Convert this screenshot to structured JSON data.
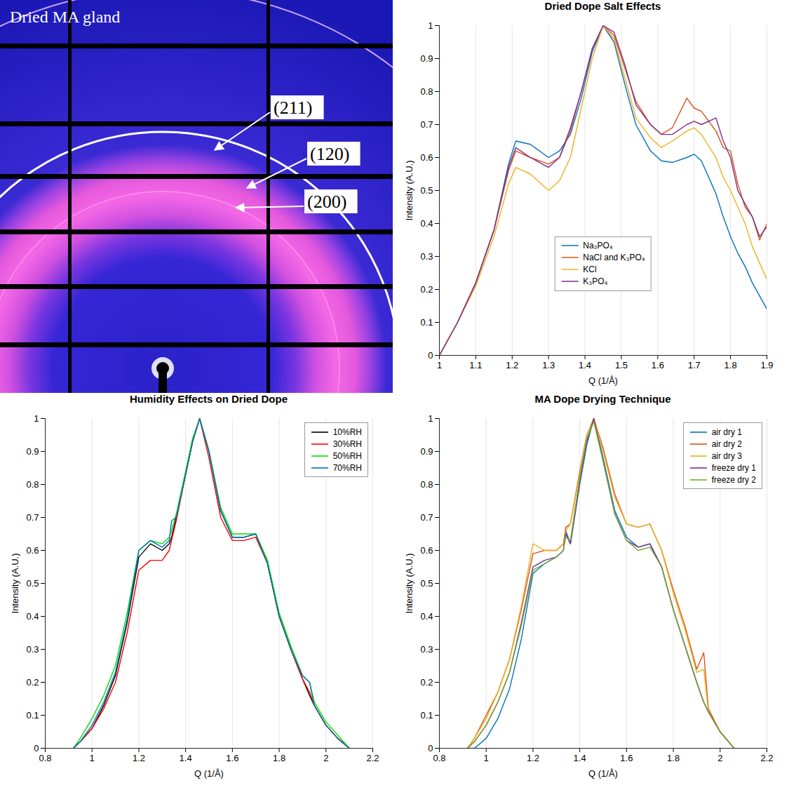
{
  "chart_data": [
    {
      "type": "image",
      "title": "Dried MA gland",
      "annotations": [
        "(211)",
        "(120)",
        "(200)"
      ]
    },
    {
      "type": "line",
      "title": "Dried Dope Salt Effects",
      "xlabel": "Q (1/Å)",
      "ylabel": "Intensity (A.U.)",
      "x": [
        1,
        1.05,
        1.1,
        1.15,
        1.19,
        1.21,
        1.25,
        1.3,
        1.33,
        1.36,
        1.39,
        1.42,
        1.45,
        1.48,
        1.51,
        1.54,
        1.58,
        1.61,
        1.64,
        1.68,
        1.7,
        1.72,
        1.76,
        1.78,
        1.8,
        1.82,
        1.84,
        1.86,
        1.88,
        1.9
      ],
      "xlim": [
        1,
        1.9
      ],
      "xticks": [
        1,
        1.1,
        1.2,
        1.3,
        1.4,
        1.5,
        1.6,
        1.7,
        1.8,
        1.9
      ],
      "ylim": [
        0,
        1
      ],
      "yticks": [
        0,
        0.1,
        0.2,
        0.3,
        0.4,
        0.5,
        0.6,
        0.7,
        0.8,
        0.9,
        1
      ],
      "grid": "x",
      "legend": "bottom",
      "series": [
        {
          "name": "Na₃PO₄",
          "color": "#0072bd",
          "values": [
            0,
            0.1,
            0.22,
            0.38,
            0.58,
            0.65,
            0.64,
            0.6,
            0.62,
            0.67,
            0.78,
            0.92,
            1.0,
            0.95,
            0.82,
            0.7,
            0.62,
            0.59,
            0.585,
            0.6,
            0.61,
            0.59,
            0.49,
            0.42,
            0.36,
            0.31,
            0.27,
            0.22,
            0.18,
            0.14
          ]
        },
        {
          "name": "NaCl and K₃PO₄",
          "color": "#d95319",
          "values": [
            0,
            0.1,
            0.22,
            0.38,
            0.56,
            0.62,
            0.6,
            0.58,
            0.6,
            0.68,
            0.8,
            0.93,
            1.0,
            0.97,
            0.87,
            0.77,
            0.7,
            0.67,
            0.69,
            0.78,
            0.75,
            0.74,
            0.68,
            0.63,
            0.62,
            0.52,
            0.45,
            0.42,
            0.35,
            0.4
          ]
        },
        {
          "name": "KCl",
          "color": "#edb120",
          "values": [
            0,
            0.1,
            0.21,
            0.36,
            0.52,
            0.57,
            0.55,
            0.5,
            0.53,
            0.6,
            0.75,
            0.9,
            1.0,
            0.96,
            0.84,
            0.72,
            0.66,
            0.63,
            0.65,
            0.68,
            0.69,
            0.67,
            0.6,
            0.54,
            0.5,
            0.45,
            0.4,
            0.33,
            0.28,
            0.23
          ]
        },
        {
          "name": "K₃PO₄",
          "color": "#7e2f8e",
          "values": [
            0,
            0.1,
            0.22,
            0.38,
            0.57,
            0.63,
            0.6,
            0.57,
            0.6,
            0.69,
            0.8,
            0.93,
            1.0,
            0.98,
            0.88,
            0.76,
            0.7,
            0.67,
            0.67,
            0.7,
            0.71,
            0.7,
            0.72,
            0.65,
            0.6,
            0.5,
            0.46,
            0.42,
            0.36,
            0.39
          ]
        }
      ]
    },
    {
      "type": "line",
      "title": "Humidity Effects on Dried Dope",
      "xlabel": "Q (1/Å)",
      "ylabel": "Intensity (A.U.)",
      "x": [
        0.92,
        0.95,
        1.0,
        1.05,
        1.1,
        1.15,
        1.2,
        1.25,
        1.3,
        1.33,
        1.34,
        1.36,
        1.4,
        1.43,
        1.46,
        1.5,
        1.55,
        1.6,
        1.65,
        1.7,
        1.75,
        1.8,
        1.85,
        1.9,
        1.93,
        1.95,
        2.0,
        2.05,
        2.1
      ],
      "xlim": [
        0.8,
        2.2
      ],
      "xticks": [
        0.8,
        1,
        1.2,
        1.4,
        1.6,
        1.8,
        2,
        2.2
      ],
      "ylim": [
        0,
        1
      ],
      "yticks": [
        0,
        0.1,
        0.2,
        0.3,
        0.4,
        0.5,
        0.6,
        0.7,
        0.8,
        0.9,
        1
      ],
      "grid": "x",
      "legend": "top-right",
      "series": [
        {
          "name": "10%RH",
          "color": "#000000",
          "values": [
            0,
            0.02,
            0.06,
            0.13,
            0.22,
            0.38,
            0.58,
            0.62,
            0.6,
            0.62,
            0.64,
            0.7,
            0.83,
            0.93,
            1.0,
            0.9,
            0.72,
            0.64,
            0.64,
            0.65,
            0.56,
            0.4,
            0.3,
            0.21,
            0.16,
            0.13,
            0.07,
            0.03,
            0
          ]
        },
        {
          "name": "30%RH",
          "color": "#ff0000",
          "values": [
            0,
            0.02,
            0.06,
            0.12,
            0.2,
            0.35,
            0.54,
            0.57,
            0.57,
            0.6,
            0.63,
            0.69,
            0.83,
            0.93,
            1.0,
            0.88,
            0.7,
            0.63,
            0.63,
            0.64,
            0.56,
            0.4,
            0.3,
            0.21,
            0.17,
            0.13,
            0.07,
            0.03,
            0
          ]
        },
        {
          "name": "50%RH",
          "color": "#00e000",
          "values": [
            0,
            0.03,
            0.09,
            0.16,
            0.25,
            0.41,
            0.6,
            0.63,
            0.62,
            0.64,
            0.66,
            0.71,
            0.84,
            0.94,
            1.0,
            0.9,
            0.73,
            0.65,
            0.65,
            0.65,
            0.57,
            0.41,
            0.31,
            0.22,
            0.2,
            0.14,
            0.08,
            0.04,
            0
          ]
        },
        {
          "name": "70%RH",
          "color": "#0072bd",
          "values": [
            0,
            0.02,
            0.07,
            0.14,
            0.23,
            0.39,
            0.6,
            0.63,
            0.61,
            0.63,
            0.69,
            0.7,
            0.83,
            0.93,
            1.0,
            0.9,
            0.72,
            0.64,
            0.64,
            0.65,
            0.56,
            0.4,
            0.3,
            0.22,
            0.2,
            0.13,
            0.07,
            0.03,
            0
          ]
        }
      ]
    },
    {
      "type": "line",
      "title": "MA Dope Drying Technique",
      "xlabel": "Q (1/Å)",
      "ylabel": "Intensity (A.U.)",
      "x": [
        0.92,
        0.95,
        1.0,
        1.05,
        1.1,
        1.15,
        1.2,
        1.25,
        1.3,
        1.33,
        1.34,
        1.36,
        1.4,
        1.43,
        1.46,
        1.5,
        1.55,
        1.6,
        1.65,
        1.7,
        1.75,
        1.8,
        1.85,
        1.9,
        1.93,
        1.95,
        2.0,
        2.06
      ],
      "xlim": [
        0.8,
        2.2
      ],
      "xticks": [
        0.8,
        1,
        1.2,
        1.4,
        1.6,
        1.8,
        2,
        2.2
      ],
      "ylim": [
        0,
        1
      ],
      "yticks": [
        0,
        0.1,
        0.2,
        0.3,
        0.4,
        0.5,
        0.6,
        0.7,
        0.8,
        0.9,
        1
      ],
      "grid": "x",
      "legend": "top-right",
      "series": [
        {
          "name": "air dry 1",
          "color": "#0072bd",
          "values": [
            0,
            0,
            0.03,
            0.09,
            0.18,
            0.33,
            0.53,
            0.56,
            0.58,
            0.6,
            0.66,
            0.62,
            0.8,
            0.92,
            1.0,
            0.88,
            0.72,
            0.64,
            0.61,
            0.62,
            0.55,
            0.42,
            0.31,
            0.2,
            0.14,
            0.11,
            0.05,
            0
          ]
        },
        {
          "name": "air dry 2",
          "color": "#d95319",
          "values": [
            0,
            0.03,
            0.1,
            0.17,
            0.27,
            0.42,
            0.59,
            0.6,
            0.6,
            0.62,
            0.67,
            0.68,
            0.84,
            0.95,
            1.0,
            0.91,
            0.77,
            0.68,
            0.67,
            0.68,
            0.6,
            0.48,
            0.37,
            0.24,
            0.29,
            0.12,
            0.05,
            0
          ]
        },
        {
          "name": "air dry 3",
          "color": "#edb120",
          "values": [
            0,
            0.03,
            0.09,
            0.17,
            0.27,
            0.43,
            0.62,
            0.6,
            0.6,
            0.62,
            0.66,
            0.68,
            0.83,
            0.95,
            1.0,
            0.9,
            0.76,
            0.68,
            0.67,
            0.68,
            0.6,
            0.47,
            0.36,
            0.23,
            0.24,
            0.11,
            0.05,
            0
          ]
        },
        {
          "name": "freeze dry 1",
          "color": "#7e2f8e",
          "values": [
            0,
            0.02,
            0.07,
            0.14,
            0.23,
            0.38,
            0.55,
            0.57,
            0.58,
            0.6,
            0.65,
            0.62,
            0.81,
            0.93,
            1.0,
            0.87,
            0.71,
            0.63,
            0.61,
            0.62,
            0.55,
            0.42,
            0.31,
            0.2,
            0.14,
            0.11,
            0.05,
            0
          ]
        },
        {
          "name": "freeze dry 2",
          "color": "#77ac30",
          "values": [
            0,
            0.02,
            0.07,
            0.14,
            0.23,
            0.37,
            0.54,
            0.56,
            0.58,
            0.6,
            0.64,
            0.63,
            0.82,
            0.94,
            0.99,
            0.87,
            0.71,
            0.63,
            0.6,
            0.61,
            0.55,
            0.42,
            0.31,
            0.2,
            0.14,
            0.11,
            0.05,
            0
          ]
        }
      ]
    }
  ]
}
